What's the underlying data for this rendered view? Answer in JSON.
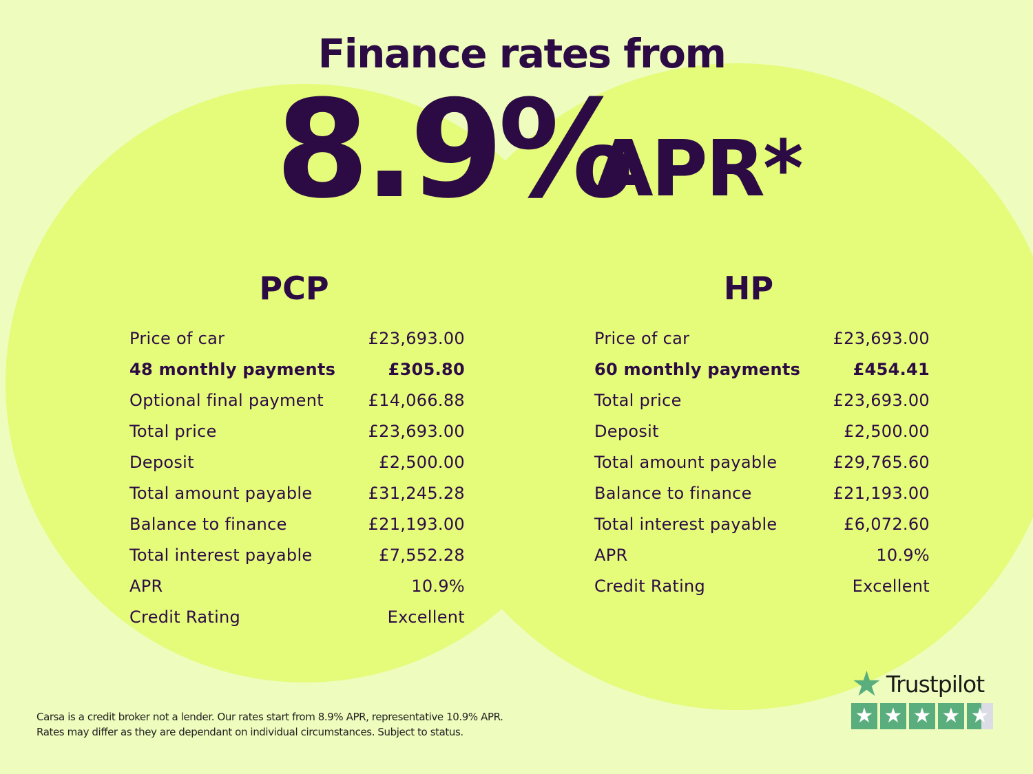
{
  "headline": {
    "title": "Finance rates from",
    "rate": "8.9%",
    "suffix": "APR*"
  },
  "pcp": {
    "title": "PCP",
    "rows": [
      {
        "label": "Price of car",
        "value": "£23,693.00",
        "bold": false
      },
      {
        "label": "48 monthly payments",
        "value": "£305.80",
        "bold": true
      },
      {
        "label": "Optional final payment",
        "value": "£14,066.88",
        "bold": false
      },
      {
        "label": "Total price",
        "value": "£23,693.00",
        "bold": false
      },
      {
        "label": "Deposit",
        "value": "£2,500.00",
        "bold": false
      },
      {
        "label": "Total amount payable",
        "value": "£31,245.28",
        "bold": false
      },
      {
        "label": "Balance to finance",
        "value": "£21,193.00",
        "bold": false
      },
      {
        "label": "Total interest payable",
        "value": "£7,552.28",
        "bold": false
      },
      {
        "label": "APR",
        "value": "10.9%",
        "bold": false
      },
      {
        "label": "Credit Rating",
        "value": "Excellent",
        "bold": false
      }
    ]
  },
  "hp": {
    "title": "HP",
    "rows": [
      {
        "label": "Price of car",
        "value": "£23,693.00",
        "bold": false
      },
      {
        "label": "60 monthly payments",
        "value": "£454.41",
        "bold": true
      },
      {
        "label": "Total price",
        "value": "£23,693.00",
        "bold": false
      },
      {
        "label": "Deposit",
        "value": "£2,500.00",
        "bold": false
      },
      {
        "label": "Total amount payable",
        "value": "£29,765.60",
        "bold": false
      },
      {
        "label": "Balance to finance",
        "value": "£21,193.00",
        "bold": false
      },
      {
        "label": "Total interest payable",
        "value": "£6,072.60",
        "bold": false
      },
      {
        "label": "APR",
        "value": "10.9%",
        "bold": false
      },
      {
        "label": "Credit Rating",
        "value": "Excellent",
        "bold": false
      }
    ]
  },
  "footer": {
    "line1": "Carsa is a credit broker not a lender. Our rates start from 8.9% APR, representative 10.9% APR.",
    "line2": "Rates may differ as they are dependant on individual circumstances. Subject to status."
  },
  "trustpilot": {
    "name": "Trustpilot",
    "rating_stars": 4.5,
    "max_stars": 5,
    "icon": "star-icon",
    "color": "#5aad7c"
  },
  "colors": {
    "background": "#eefcbd",
    "circles": "#e5fb7a",
    "text": "#2c0b45"
  }
}
